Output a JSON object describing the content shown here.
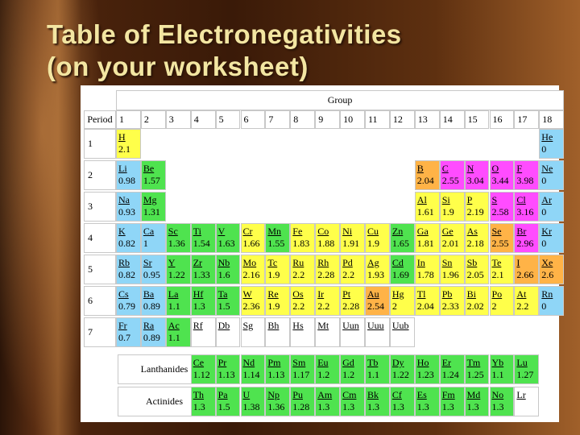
{
  "slide": {
    "title_lines": [
      "Table of Electronegativities",
      "(on your worksheet)"
    ],
    "table": {
      "group_label": "Group",
      "period_label": "Period",
      "groups": [
        1,
        2,
        3,
        4,
        5,
        6,
        7,
        8,
        9,
        10,
        11,
        12,
        13,
        14,
        15,
        16,
        17,
        18
      ],
      "colors": {
        "b": "#8fd6f7",
        "g": "#4fe34f",
        "y": "#ffff4a",
        "o": "#ffb347",
        "m": "#ff4cff",
        "w": "#ffffff"
      },
      "periods": [
        {
          "period": 1,
          "elements": [
            {
              "symbol": "H",
              "en": 2.1,
              "group": 1,
              "color": "y"
            },
            {
              "symbol": "He",
              "en": 0,
              "group": 18,
              "color": "b"
            }
          ]
        },
        {
          "period": 2,
          "elements": [
            {
              "symbol": "Li",
              "en": 0.98,
              "group": 1,
              "color": "b"
            },
            {
              "symbol": "Be",
              "en": 1.57,
              "group": 2,
              "color": "g"
            },
            {
              "symbol": "B",
              "en": 2.04,
              "group": 13,
              "color": "o"
            },
            {
              "symbol": "C",
              "en": 2.55,
              "group": 14,
              "color": "m"
            },
            {
              "symbol": "N",
              "en": 3.04,
              "group": 15,
              "color": "m"
            },
            {
              "symbol": "O",
              "en": 3.44,
              "group": 16,
              "color": "m"
            },
            {
              "symbol": "F",
              "en": 3.98,
              "group": 17,
              "color": "m"
            },
            {
              "symbol": "Ne",
              "en": 0,
              "group": 18,
              "color": "b"
            }
          ]
        },
        {
          "period": 3,
          "elements": [
            {
              "symbol": "Na",
              "en": 0.93,
              "group": 1,
              "color": "b"
            },
            {
              "symbol": "Mg",
              "en": 1.31,
              "group": 2,
              "color": "g"
            },
            {
              "symbol": "Al",
              "en": 1.61,
              "group": 13,
              "color": "y"
            },
            {
              "symbol": "Si",
              "en": 1.9,
              "group": 14,
              "color": "y"
            },
            {
              "symbol": "P",
              "en": 2.19,
              "group": 15,
              "color": "y"
            },
            {
              "symbol": "S",
              "en": 2.58,
              "group": 16,
              "color": "m"
            },
            {
              "symbol": "Cl",
              "en": 3.16,
              "group": 17,
              "color": "m"
            },
            {
              "symbol": "Ar",
              "en": 0,
              "group": 18,
              "color": "b"
            }
          ]
        },
        {
          "period": 4,
          "elements": [
            {
              "symbol": "K",
              "en": 0.82,
              "group": 1,
              "color": "b"
            },
            {
              "symbol": "Ca",
              "en": 1,
              "group": 2,
              "color": "b"
            },
            {
              "symbol": "Sc",
              "en": 1.36,
              "group": 3,
              "color": "g"
            },
            {
              "symbol": "Ti",
              "en": 1.54,
              "group": 4,
              "color": "g"
            },
            {
              "symbol": "V",
              "en": 1.63,
              "group": 5,
              "color": "g"
            },
            {
              "symbol": "Cr",
              "en": 1.66,
              "group": 6,
              "color": "y"
            },
            {
              "symbol": "Mn",
              "en": 1.55,
              "group": 7,
              "color": "g"
            },
            {
              "symbol": "Fe",
              "en": 1.83,
              "group": 8,
              "color": "y"
            },
            {
              "symbol": "Co",
              "en": 1.88,
              "group": 9,
              "color": "y"
            },
            {
              "symbol": "Ni",
              "en": 1.91,
              "group": 10,
              "color": "y"
            },
            {
              "symbol": "Cu",
              "en": 1.9,
              "group": 11,
              "color": "y"
            },
            {
              "symbol": "Zn",
              "en": 1.65,
              "group": 12,
              "color": "g"
            },
            {
              "symbol": "Ga",
              "en": 1.81,
              "group": 13,
              "color": "y"
            },
            {
              "symbol": "Ge",
              "en": 2.01,
              "group": 14,
              "color": "y"
            },
            {
              "symbol": "As",
              "en": 2.18,
              "group": 15,
              "color": "y"
            },
            {
              "symbol": "Se",
              "en": 2.55,
              "group": 16,
              "color": "o"
            },
            {
              "symbol": "Br",
              "en": 2.96,
              "group": 17,
              "color": "m"
            },
            {
              "symbol": "Kr",
              "en": 0,
              "group": 18,
              "color": "b"
            }
          ]
        },
        {
          "period": 5,
          "elements": [
            {
              "symbol": "Rb",
              "en": 0.82,
              "group": 1,
              "color": "b"
            },
            {
              "symbol": "Sr",
              "en": 0.95,
              "group": 2,
              "color": "b"
            },
            {
              "symbol": "Y",
              "en": 1.22,
              "group": 3,
              "color": "g"
            },
            {
              "symbol": "Zr",
              "en": 1.33,
              "group": 4,
              "color": "g"
            },
            {
              "symbol": "Nb",
              "en": 1.6,
              "group": 5,
              "color": "g"
            },
            {
              "symbol": "Mo",
              "en": 2.16,
              "group": 6,
              "color": "y"
            },
            {
              "symbol": "Tc",
              "en": 1.9,
              "group": 7,
              "color": "y"
            },
            {
              "symbol": "Ru",
              "en": 2.2,
              "group": 8,
              "color": "y"
            },
            {
              "symbol": "Rh",
              "en": 2.28,
              "group": 9,
              "color": "y"
            },
            {
              "symbol": "Pd",
              "en": 2.2,
              "group": 10,
              "color": "y"
            },
            {
              "symbol": "Ag",
              "en": 1.93,
              "group": 11,
              "color": "y"
            },
            {
              "symbol": "Cd",
              "en": 1.69,
              "group": 12,
              "color": "g"
            },
            {
              "symbol": "In",
              "en": 1.78,
              "group": 13,
              "color": "y"
            },
            {
              "symbol": "Sn",
              "en": 1.96,
              "group": 14,
              "color": "y"
            },
            {
              "symbol": "Sb",
              "en": 2.05,
              "group": 15,
              "color": "y"
            },
            {
              "symbol": "Te",
              "en": 2.1,
              "group": 16,
              "color": "y"
            },
            {
              "symbol": "I",
              "en": 2.66,
              "group": 17,
              "color": "o"
            },
            {
              "symbol": "Xe",
              "en": 2.6,
              "group": 18,
              "color": "o"
            }
          ]
        },
        {
          "period": 6,
          "elements": [
            {
              "symbol": "Cs",
              "en": 0.79,
              "group": 1,
              "color": "b"
            },
            {
              "symbol": "Ba",
              "en": 0.89,
              "group": 2,
              "color": "b"
            },
            {
              "symbol": "La",
              "en": 1.1,
              "group": 3,
              "color": "g"
            },
            {
              "symbol": "Hf",
              "en": 1.3,
              "group": 4,
              "color": "g"
            },
            {
              "symbol": "Ta",
              "en": 1.5,
              "group": 5,
              "color": "g"
            },
            {
              "symbol": "W",
              "en": 2.36,
              "group": 6,
              "color": "y"
            },
            {
              "symbol": "Re",
              "en": 1.9,
              "group": 7,
              "color": "y"
            },
            {
              "symbol": "Os",
              "en": 2.2,
              "group": 8,
              "color": "y"
            },
            {
              "symbol": "Ir",
              "en": 2.2,
              "group": 9,
              "color": "y"
            },
            {
              "symbol": "Pt",
              "en": 2.28,
              "group": 10,
              "color": "y"
            },
            {
              "symbol": "Au",
              "en": 2.54,
              "group": 11,
              "color": "o"
            },
            {
              "symbol": "Hg",
              "en": 2,
              "group": 12,
              "color": "y"
            },
            {
              "symbol": "Tl",
              "en": 2.04,
              "group": 13,
              "color": "y"
            },
            {
              "symbol": "Pb",
              "en": 2.33,
              "group": 14,
              "color": "y"
            },
            {
              "symbol": "Bi",
              "en": 2.02,
              "group": 15,
              "color": "y"
            },
            {
              "symbol": "Po",
              "en": 2,
              "group": 16,
              "color": "y"
            },
            {
              "symbol": "At",
              "en": 2.2,
              "group": 17,
              "color": "y"
            },
            {
              "symbol": "Rn",
              "en": 0,
              "group": 18,
              "color": "b"
            }
          ]
        },
        {
          "period": 7,
          "elements": [
            {
              "symbol": "Fr",
              "en": 0.7,
              "group": 1,
              "color": "b"
            },
            {
              "symbol": "Ra",
              "en": 0.89,
              "group": 2,
              "color": "b"
            },
            {
              "symbol": "Ac",
              "en": 1.1,
              "group": 3,
              "color": "g"
            },
            {
              "symbol": "Rf",
              "group": 4,
              "color": "w"
            },
            {
              "symbol": "Db",
              "group": 5,
              "color": "w"
            },
            {
              "symbol": "Sg",
              "group": 6,
              "color": "w"
            },
            {
              "symbol": "Bh",
              "group": 7,
              "color": "w"
            },
            {
              "symbol": "Hs",
              "group": 8,
              "color": "w"
            },
            {
              "symbol": "Mt",
              "group": 9,
              "color": "w"
            },
            {
              "symbol": "Uun",
              "group": 10,
              "color": "w"
            },
            {
              "symbol": "Uuu",
              "group": 11,
              "color": "w"
            },
            {
              "symbol": "Uub",
              "group": 12,
              "color": "w"
            }
          ]
        }
      ],
      "series": [
        {
          "label": "Lanthanides",
          "elements": [
            {
              "symbol": "Ce",
              "en": 1.12,
              "color": "g"
            },
            {
              "symbol": "Pr",
              "en": 1.13,
              "color": "g"
            },
            {
              "symbol": "Nd",
              "en": 1.14,
              "color": "g"
            },
            {
              "symbol": "Pm",
              "en": 1.13,
              "color": "g"
            },
            {
              "symbol": "Sm",
              "en": 1.17,
              "color": "g"
            },
            {
              "symbol": "Eu",
              "en": 1.2,
              "color": "g"
            },
            {
              "symbol": "Gd",
              "en": 1.2,
              "color": "g"
            },
            {
              "symbol": "Tb",
              "en": 1.1,
              "color": "g"
            },
            {
              "symbol": "Dy",
              "en": 1.22,
              "color": "g"
            },
            {
              "symbol": "Ho",
              "en": 1.23,
              "color": "g"
            },
            {
              "symbol": "Er",
              "en": 1.24,
              "color": "g"
            },
            {
              "symbol": "Tm",
              "en": 1.25,
              "color": "g"
            },
            {
              "symbol": "Yb",
              "en": 1.1,
              "color": "g"
            },
            {
              "symbol": "Lu",
              "en": 1.27,
              "color": "g"
            }
          ]
        },
        {
          "label": "Actinides",
          "elements": [
            {
              "symbol": "Th",
              "en": 1.3,
              "color": "g"
            },
            {
              "symbol": "Pa",
              "en": 1.5,
              "color": "g"
            },
            {
              "symbol": "U",
              "en": 1.38,
              "color": "g"
            },
            {
              "symbol": "Np",
              "en": 1.36,
              "color": "g"
            },
            {
              "symbol": "Pu",
              "en": 1.28,
              "color": "g"
            },
            {
              "symbol": "Am",
              "en": 1.3,
              "color": "g"
            },
            {
              "symbol": "Cm",
              "en": 1.3,
              "color": "g"
            },
            {
              "symbol": "Bk",
              "en": 1.3,
              "color": "g"
            },
            {
              "symbol": "Cf",
              "en": 1.3,
              "color": "g"
            },
            {
              "symbol": "Es",
              "en": 1.3,
              "color": "g"
            },
            {
              "symbol": "Fm",
              "en": 1.3,
              "color": "g"
            },
            {
              "symbol": "Md",
              "en": 1.3,
              "color": "g"
            },
            {
              "symbol": "No",
              "en": 1.3,
              "color": "g"
            },
            {
              "symbol": "Lr",
              "color": "w"
            }
          ]
        }
      ]
    }
  }
}
